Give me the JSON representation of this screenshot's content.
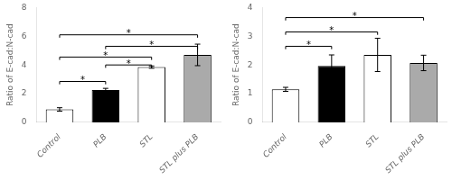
{
  "chart_data": [
    {
      "type": "bar",
      "ylabel": "Ratio of E-cad:N-cad",
      "categories": [
        "Control",
        "PLB",
        "STL",
        "STL plus PLB"
      ],
      "values": [
        0.9,
        2.25,
        3.85,
        4.7
      ],
      "errors": [
        0.12,
        0.12,
        0.08,
        0.75
      ],
      "colors": [
        "white",
        "black",
        "white",
        "#aaaaaa"
      ],
      "ylim": [
        0,
        8
      ],
      "yticks": [
        0,
        2,
        4,
        6,
        8
      ],
      "grid": false,
      "significance": [
        {
          "x1": "Control",
          "x2": "PLB",
          "y": 2.85,
          "label": "*"
        },
        {
          "x1": "Control",
          "x2": "STL",
          "y": 4.55,
          "label": "*"
        },
        {
          "x1": "PLB",
          "x2": "STL",
          "y": 4.0,
          "label": "*"
        },
        {
          "x1": "Control",
          "x2": "STL plus PLB",
          "y": 6.1,
          "label": "*"
        },
        {
          "x1": "PLB",
          "x2": "STL plus PLB",
          "y": 5.3,
          "label": "*"
        }
      ]
    },
    {
      "type": "bar",
      "ylabel": "Ratio of E-cad:N-cad",
      "categories": [
        "Control",
        "PLB",
        "STL",
        "STL plus PLB"
      ],
      "values": [
        1.15,
        1.97,
        2.35,
        2.07
      ],
      "errors": [
        0.07,
        0.38,
        0.58,
        0.27
      ],
      "colors": [
        "white",
        "black",
        "white",
        "#aaaaaa"
      ],
      "ylim": [
        0,
        4
      ],
      "yticks": [
        0,
        1,
        2,
        3,
        4
      ],
      "grid": false,
      "significance": [
        {
          "x1": "Control",
          "x2": "PLB",
          "y": 2.65,
          "label": "*"
        },
        {
          "x1": "Control",
          "x2": "STL",
          "y": 3.15,
          "label": "*"
        },
        {
          "x1": "Control",
          "x2": "STL plus PLB",
          "y": 3.65,
          "label": "*"
        }
      ]
    }
  ]
}
